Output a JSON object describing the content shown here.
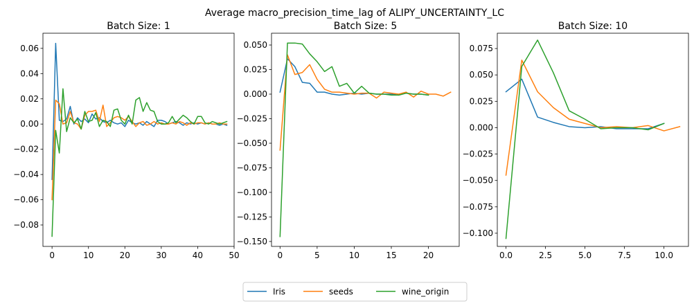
{
  "figure": {
    "suptitle": "Average macro_precision_time_lag of ALIPY_UNCERTAINTY_LC"
  },
  "legend": {
    "entries": [
      {
        "name": "Iris",
        "color": "#1f77b4"
      },
      {
        "name": "seeds",
        "color": "#ff7f0e"
      },
      {
        "name": "wine_origin",
        "color": "#2ca02c"
      }
    ],
    "placement": "bottom-center"
  },
  "chart_data": [
    {
      "type": "line",
      "title": "Batch Size: 1",
      "xlabel": "",
      "ylabel": "",
      "xlim": [
        -2.5,
        50
      ],
      "ylim": [
        -0.097,
        0.072
      ],
      "xticks": [
        0,
        10,
        20,
        30,
        40,
        50
      ],
      "yticks": [
        -0.08,
        -0.06,
        -0.04,
        -0.02,
        0.0,
        0.02,
        0.04,
        0.06
      ],
      "ytick_labels": [
        "−0.08",
        "−0.06",
        "−0.04",
        "−0.02",
        "0.00",
        "0.02",
        "0.04",
        "0.06"
      ],
      "series": [
        {
          "name": "Iris",
          "color": "#1f77b4",
          "x_start": 0,
          "values": [
            -0.044,
            0.064,
            0.003,
            0.002,
            0.004,
            0.014,
            0.0,
            0.005,
            0.002,
            0.004,
            0.001,
            0.008,
            0.004,
            0.005,
            0.002,
            0.001,
            0.003,
            0.001,
            0.0,
            0.001,
            -0.002,
            0.003,
            0.001,
            0.0,
            0.001,
            -0.001,
            0.002,
            0.0,
            -0.002,
            0.003,
            0.003,
            0.002,
            0.0,
            0.001,
            0.002,
            0.001,
            -0.001,
            0.001,
            0.0,
            0.001,
            0.0,
            0.001,
            0.0,
            0.001,
            0.0,
            0.0,
            -0.001,
            0.0,
            -0.001
          ]
        },
        {
          "name": "seeds",
          "color": "#ff7f0e",
          "x_start": 0,
          "values": [
            -0.06,
            0.019,
            0.016,
            0.0,
            0.001,
            0.01,
            0.001,
            0.0,
            -0.004,
            0.007,
            0.01,
            0.01,
            0.011,
            0.002,
            0.015,
            -0.002,
            0.001,
            0.005,
            0.006,
            0.005,
            0.003,
            0.006,
            0.002,
            -0.002,
            0.001,
            0.002,
            -0.001,
            0.0,
            0.002,
            0.0,
            0.001,
            0.0,
            0.0,
            0.001,
            0.0,
            0.002,
            0.001,
            -0.001,
            0.001,
            0.0,
            0.001,
            0.001,
            0.0,
            0.001,
            0.0,
            0.0,
            0.001,
            0.0,
            0.0
          ]
        },
        {
          "name": "wine_origin",
          "color": "#2ca02c",
          "x_start": 0,
          "values": [
            -0.089,
            -0.005,
            -0.023,
            0.028,
            -0.006,
            0.005,
            0.001,
            0.004,
            -0.004,
            0.01,
            0.002,
            0.003,
            0.009,
            -0.002,
            0.003,
            0.002,
            -0.002,
            0.011,
            0.012,
            0.003,
            0.0,
            0.007,
            0.0,
            0.019,
            0.021,
            0.01,
            0.017,
            0.011,
            0.01,
            0.002,
            0.0,
            0.0,
            0.001,
            0.006,
            0.001,
            0.004,
            0.007,
            0.005,
            0.002,
            0.0,
            0.006,
            0.006,
            0.001,
            0.0,
            0.002,
            0.001,
            0.0,
            0.001,
            0.002
          ]
        }
      ]
    },
    {
      "type": "line",
      "title": "Batch Size: 5",
      "xlabel": "",
      "ylabel": "",
      "xlim": [
        -1.15,
        24.15
      ],
      "ylim": [
        -0.155,
        0.062
      ],
      "xticks": [
        0,
        5,
        10,
        15,
        20
      ],
      "yticks": [
        -0.15,
        -0.125,
        -0.1,
        -0.075,
        -0.05,
        -0.025,
        0.0,
        0.025,
        0.05
      ],
      "ytick_labels": [
        "−0.150",
        "−0.125",
        "−0.100",
        "−0.075",
        "−0.050",
        "−0.025",
        "0.000",
        "0.025",
        "0.050"
      ],
      "series": [
        {
          "name": "Iris",
          "color": "#1f77b4",
          "x_start": 0,
          "values": [
            0.002,
            0.036,
            0.028,
            0.012,
            0.011,
            0.002,
            0.002,
            0.0,
            -0.001,
            0.0,
            0.001,
            0.0,
            0.001,
            0.0,
            0.0,
            0.0,
            -0.001,
            0.001,
            0.0,
            0.0,
            -0.001
          ]
        },
        {
          "name": "seeds",
          "color": "#ff7f0e",
          "x_start": 0,
          "values": [
            -0.057,
            0.04,
            0.02,
            0.022,
            0.03,
            0.015,
            0.005,
            0.002,
            0.002,
            0.001,
            0.0,
            0.001,
            0.001,
            -0.004,
            0.002,
            0.001,
            0.0,
            0.002,
            -0.003,
            0.003,
            0.0,
            0.0,
            -0.002,
            0.002
          ]
        },
        {
          "name": "wine_origin",
          "color": "#2ca02c",
          "x_start": 0,
          "values": [
            -0.145,
            0.052,
            0.052,
            0.051,
            0.041,
            0.033,
            0.023,
            0.028,
            0.008,
            0.011,
            0.001,
            0.008,
            0.001,
            0.0,
            0.0,
            -0.001,
            -0.001,
            0.001,
            0.0,
            0.0,
            -0.001
          ]
        }
      ]
    },
    {
      "type": "line",
      "title": "Batch Size: 10",
      "xlabel": "",
      "ylabel": "",
      "xlim": [
        -0.55,
        11.55
      ],
      "ylim": [
        -0.1125,
        0.0895
      ],
      "xticks": [
        0.0,
        2.5,
        5.0,
        7.5,
        10.0
      ],
      "xtick_labels": [
        "0.0",
        "2.5",
        "5.0",
        "7.5",
        "10.0"
      ],
      "yticks": [
        -0.1,
        -0.075,
        -0.05,
        -0.025,
        0.0,
        0.025,
        0.05,
        0.075
      ],
      "ytick_labels": [
        "−0.100",
        "−0.075",
        "−0.050",
        "−0.025",
        "0.000",
        "0.025",
        "0.050",
        "0.075"
      ],
      "series": [
        {
          "name": "Iris",
          "color": "#1f77b4",
          "x_start": 0,
          "values": [
            0.034,
            0.046,
            0.01,
            0.005,
            0.001,
            0.0,
            0.001,
            -0.001,
            -0.001,
            -0.001,
            0.004
          ]
        },
        {
          "name": "seeds",
          "color": "#ff7f0e",
          "x_start": 0,
          "values": [
            -0.045,
            0.064,
            0.034,
            0.019,
            0.008,
            0.004,
            0.0,
            0.001,
            0.0,
            0.002,
            -0.003,
            0.001
          ]
        },
        {
          "name": "wine_origin",
          "color": "#2ca02c",
          "x_start": 0,
          "values": [
            -0.105,
            0.058,
            0.083,
            0.052,
            0.016,
            0.008,
            -0.001,
            0.0,
            0.0,
            -0.002,
            0.004
          ]
        }
      ]
    }
  ]
}
